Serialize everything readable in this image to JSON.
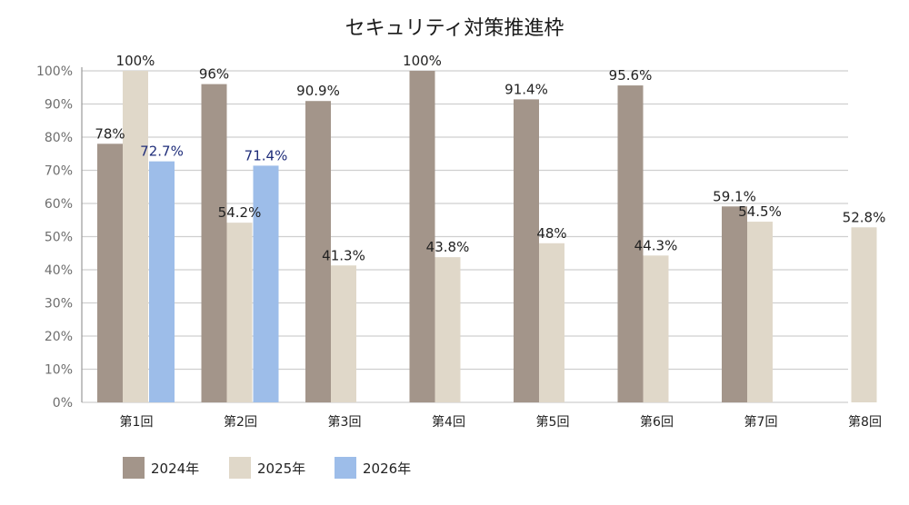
{
  "chart_data": {
    "type": "bar",
    "title": "セキュリティ対策推進枠",
    "categories": [
      "第1回",
      "第2回",
      "第3回",
      "第4回",
      "第5回",
      "第6回",
      "第7回",
      "第8回"
    ],
    "ylim": [
      0,
      100
    ],
    "yticks": [
      "0%",
      "10%",
      "20%",
      "30%",
      "40%",
      "50%",
      "60%",
      "70%",
      "80%",
      "90%",
      "100%"
    ],
    "grid": true,
    "legend_position": "bottom-left",
    "series": [
      {
        "name": "2024年",
        "color": "#a3958a",
        "values": [
          78,
          96,
          90.9,
          100,
          91.4,
          95.6,
          59.1,
          null
        ],
        "labels": [
          "78%",
          "96%",
          "90.9%",
          "100%",
          "91.4%",
          "95.6%",
          "59.1%",
          ""
        ]
      },
      {
        "name": "2025年",
        "color": "#e0d8c9",
        "values": [
          100,
          54.2,
          41.3,
          43.8,
          48,
          44.3,
          54.5,
          52.8
        ],
        "labels": [
          "100%",
          "54.2%",
          "41.3%",
          "43.8%",
          "48%",
          "44.3%",
          "54.5%",
          "52.8%"
        ]
      },
      {
        "name": "2026年",
        "color": "#9dbde9",
        "values": [
          72.7,
          71.4,
          null,
          null,
          null,
          null,
          null,
          null
        ],
        "labels": [
          "72.7%",
          "71.4%",
          "",
          "",
          "",
          "",
          "",
          ""
        ]
      }
    ]
  }
}
